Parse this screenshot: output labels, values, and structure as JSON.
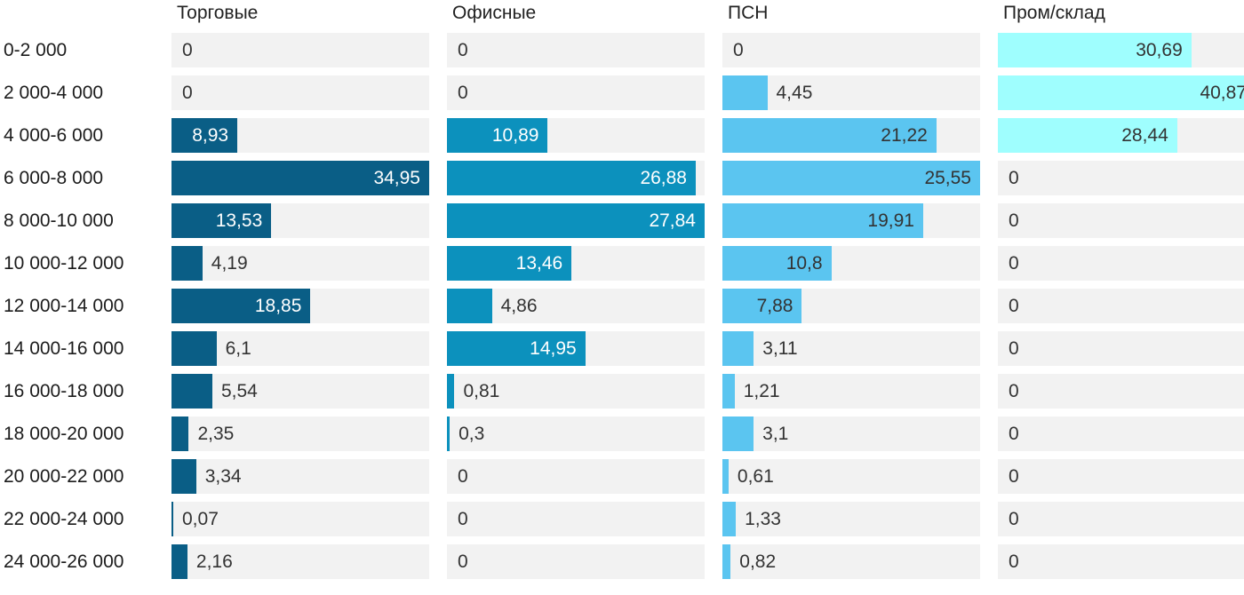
{
  "chart_data": {
    "type": "bar",
    "orientation": "horizontal",
    "title": "",
    "xlabel": "",
    "ylabel": "",
    "grid": "off",
    "legend_position": "column-headers",
    "axis_note": "no visible axis; each column is scaled independently from 0 to its own max value; values labeled on bars with comma decimal separator",
    "categories": [
      "0-2 000",
      "2 000-4 000",
      "4 000-6 000",
      "6 000-8 000",
      "8 000-10 000",
      "10 000-12 000",
      "12 000-14 000",
      "14 000-16 000",
      "16 000-18 000",
      "18 000-20 000",
      "20 000-22 000",
      "22 000-24 000",
      "24 000-26 000"
    ],
    "series": [
      {
        "name": "Торговые",
        "color": "#0a5e86",
        "inside_label_color": "#ffffff",
        "values": [
          0,
          0,
          8.93,
          34.95,
          13.53,
          4.19,
          18.85,
          6.1,
          5.54,
          2.35,
          3.34,
          0.07,
          2.16
        ],
        "labels": [
          "0",
          "0",
          "8,93",
          "34,95",
          "13,53",
          "4,19",
          "18,85",
          "6,1",
          "5,54",
          "2,35",
          "3,34",
          "0,07",
          "2,16"
        ]
      },
      {
        "name": "Офисные",
        "color": "#0c91bd",
        "inside_label_color": "#ffffff",
        "values": [
          0,
          0,
          10.89,
          26.88,
          27.84,
          13.46,
          4.86,
          14.95,
          0.81,
          0.3,
          0,
          0,
          0
        ],
        "labels": [
          "0",
          "0",
          "10,89",
          "26,88",
          "27,84",
          "13,46",
          "4,86",
          "14,95",
          "0,81",
          "0,3",
          "0",
          "0",
          "0"
        ]
      },
      {
        "name": "ПСН",
        "color": "#5bc5f0",
        "inside_label_color": "#333333",
        "values": [
          0,
          4.45,
          21.22,
          25.55,
          19.91,
          10.8,
          7.88,
          3.11,
          1.21,
          3.1,
          0.61,
          1.33,
          0.82
        ],
        "labels": [
          "0",
          "4,45",
          "21,22",
          "25,55",
          "19,91",
          "10,8",
          "7,88",
          "3,11",
          "1,21",
          "3,1",
          "0,61",
          "1,33",
          "0,82"
        ]
      },
      {
        "name": "Пром/склад",
        "color": "#9ffefe",
        "inside_label_color": "#333333",
        "values": [
          30.69,
          40.87,
          28.44,
          0,
          0,
          0,
          0,
          0,
          0,
          0,
          0,
          0,
          0
        ],
        "labels": [
          "30,69",
          "40,87",
          "28,44",
          "0",
          "0",
          "0",
          "0",
          "0",
          "0",
          "0",
          "0",
          "0",
          "0"
        ]
      }
    ],
    "style": {
      "track_color": "#f2f2f2",
      "outside_label_color": "#333333",
      "header_text_color": "#222222",
      "row_label_color": "#1c1c1c",
      "background_color": "#ffffff"
    }
  }
}
